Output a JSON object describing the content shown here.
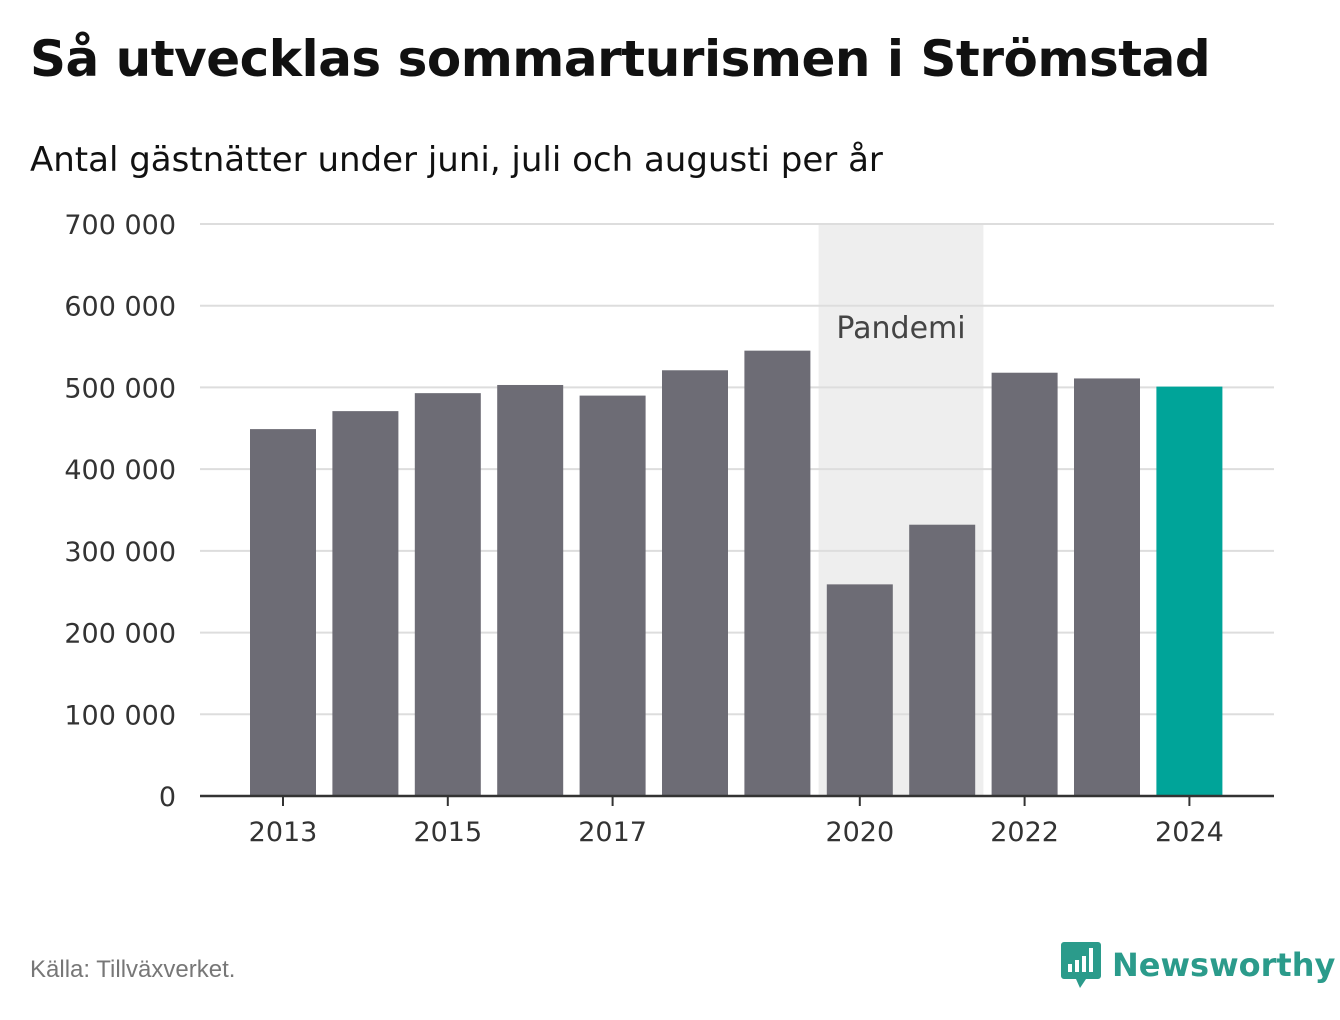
{
  "title": "Så utvecklas sommarturismen i Strömstad",
  "subtitle": "Antal gästnätter under juni, juli och augusti per år",
  "source": "Källa: Tillväxverket.",
  "brand": "Newsworthy",
  "colors": {
    "bar": "#6d6c75",
    "highlight": "#00a499",
    "band": "#eeeeee",
    "grid": "#dddddd",
    "brand": "#2b9b8b"
  },
  "chart_data": {
    "type": "bar",
    "title": "Så utvecklas sommarturismen i Strömstad",
    "subtitle": "Antal gästnätter under juni, juli och augusti per år",
    "categories": [
      "2013",
      "2014",
      "2015",
      "2016",
      "2017",
      "2018",
      "2019",
      "2020",
      "2021",
      "2022",
      "2023",
      "2024"
    ],
    "values": [
      449000,
      471000,
      493000,
      503000,
      490000,
      521000,
      545000,
      259000,
      332000,
      518000,
      511000,
      501000
    ],
    "highlight_category": "2024",
    "x_tick_labels": [
      "2013",
      "2015",
      "2017",
      "2020",
      "2022",
      "2024"
    ],
    "y_ticks": [
      0,
      100000,
      200000,
      300000,
      400000,
      500000,
      600000,
      700000
    ],
    "y_tick_labels": [
      "0",
      "100 000",
      "200 000",
      "300 000",
      "400 000",
      "500 000",
      "600 000",
      "700 000"
    ],
    "ylim": [
      0,
      700000
    ],
    "xlabel": "",
    "ylabel": "",
    "grid": true,
    "annotation": {
      "label": "Pandemi",
      "from": "2020",
      "to": "2021"
    }
  }
}
